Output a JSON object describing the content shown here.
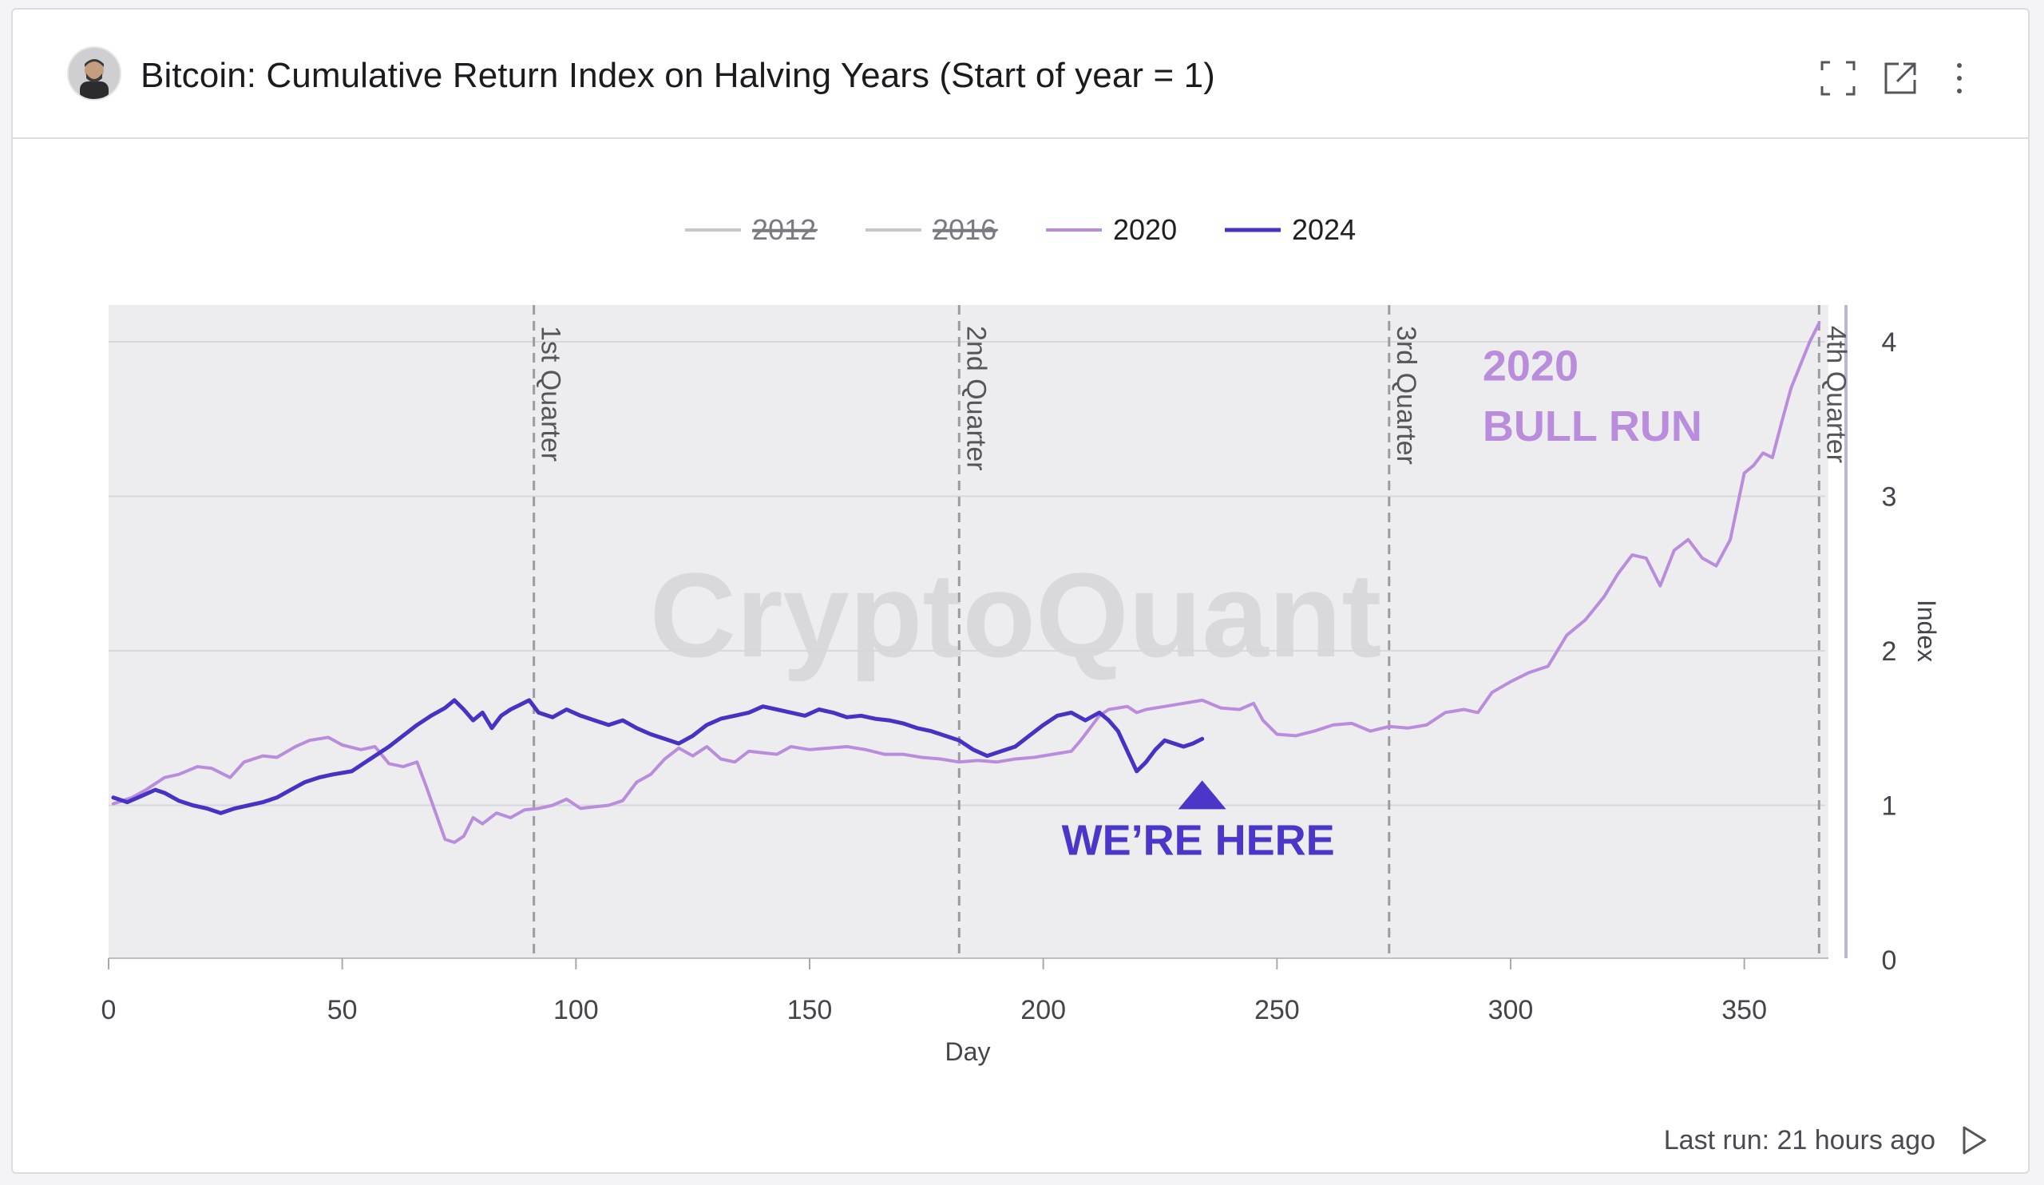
{
  "header": {
    "title": "Bitcoin: Cumulative Return Index on Halving Years (Start of year = 1)",
    "icons": [
      "avatar",
      "fullscreen-icon",
      "external-link-icon",
      "more-vertical-icon"
    ]
  },
  "footer": {
    "last_run": "Last run: 21 hours ago",
    "icon": "play-icon"
  },
  "colors": {
    "series_2020": "#b98ddb",
    "series_2024": "#4633c4",
    "hidden_series": "#c8c8cc",
    "plot_bg": "#ededf0",
    "annotation_2020": "#b98ddb",
    "annotation_here": "#4a36c8"
  },
  "chart_data": {
    "type": "line",
    "xlabel": "Day",
    "ylabel": "Index",
    "xlim": [
      0,
      368
    ],
    "ylim": [
      0,
      4.2
    ],
    "x_ticks": [
      0,
      50,
      100,
      150,
      200,
      250,
      300,
      350
    ],
    "y_ticks": [
      0,
      1,
      2,
      3,
      4
    ],
    "y_axis_side": "right",
    "grid": true,
    "watermark": "CryptoQuant",
    "legend": {
      "placement": "top-center",
      "entries": [
        {
          "name": "2012",
          "hidden": true
        },
        {
          "name": "2016",
          "hidden": true
        },
        {
          "name": "2020",
          "hidden": false
        },
        {
          "name": "2024",
          "hidden": false
        }
      ]
    },
    "quarter_markers": [
      {
        "x": 91,
        "label": "1st Quarter"
      },
      {
        "x": 182,
        "label": "2nd Quarter"
      },
      {
        "x": 274,
        "label": "3rd Quarter"
      },
      {
        "x": 366,
        "label": "4th Quarter"
      }
    ],
    "annotations": [
      {
        "text": "2020",
        "x": 294,
        "y": 3.75
      },
      {
        "text": "BULL RUN",
        "x": 294,
        "y": 3.36
      },
      {
        "text": "WE’RE HERE",
        "x": 234,
        "y": 0.68,
        "arrow_y": 1.13
      }
    ],
    "series": [
      {
        "name": "2020",
        "x": [
          1,
          5,
          8,
          12,
          15,
          19,
          22,
          26,
          29,
          33,
          36,
          40,
          43,
          47,
          50,
          54,
          57,
          60,
          63,
          66,
          68,
          70,
          72,
          74,
          76,
          78,
          80,
          83,
          86,
          89,
          92,
          95,
          98,
          101,
          104,
          107,
          110,
          113,
          116,
          119,
          122,
          125,
          128,
          131,
          134,
          137,
          140,
          143,
          146,
          150,
          154,
          158,
          162,
          166,
          170,
          174,
          178,
          182,
          186,
          190,
          194,
          198,
          202,
          206,
          208,
          210,
          212,
          214,
          216,
          218,
          220,
          222,
          226,
          230,
          234,
          238,
          242,
          245,
          247,
          250,
          254,
          258,
          262,
          266,
          270,
          274,
          278,
          282,
          286,
          290,
          293,
          296,
          300,
          304,
          308,
          312,
          316,
          320,
          323,
          326,
          329,
          332,
          335,
          338,
          341,
          344,
          347,
          350,
          352,
          354,
          356,
          358,
          360,
          362,
          364,
          366
        ],
        "y": [
          1.01,
          1.05,
          1.1,
          1.18,
          1.2,
          1.25,
          1.24,
          1.18,
          1.28,
          1.32,
          1.31,
          1.38,
          1.42,
          1.44,
          1.39,
          1.36,
          1.38,
          1.27,
          1.25,
          1.28,
          1.12,
          0.95,
          0.78,
          0.76,
          0.8,
          0.92,
          0.88,
          0.95,
          0.92,
          0.97,
          0.98,
          1.0,
          1.04,
          0.98,
          0.99,
          1.0,
          1.03,
          1.15,
          1.2,
          1.3,
          1.37,
          1.32,
          1.38,
          1.3,
          1.28,
          1.35,
          1.34,
          1.33,
          1.38,
          1.36,
          1.37,
          1.38,
          1.36,
          1.33,
          1.33,
          1.31,
          1.3,
          1.28,
          1.29,
          1.28,
          1.3,
          1.31,
          1.33,
          1.35,
          1.42,
          1.5,
          1.58,
          1.62,
          1.63,
          1.64,
          1.6,
          1.62,
          1.64,
          1.66,
          1.68,
          1.63,
          1.62,
          1.66,
          1.55,
          1.46,
          1.45,
          1.48,
          1.52,
          1.53,
          1.48,
          1.51,
          1.5,
          1.52,
          1.6,
          1.62,
          1.6,
          1.73,
          1.8,
          1.86,
          1.9,
          2.1,
          2.2,
          2.35,
          2.5,
          2.62,
          2.6,
          2.42,
          2.65,
          2.72,
          2.6,
          2.55,
          2.72,
          3.15,
          3.2,
          3.28,
          3.25,
          3.48,
          3.7,
          3.85,
          4.0,
          4.12
        ]
      },
      {
        "name": "2024",
        "x": [
          1,
          4,
          7,
          10,
          12,
          15,
          18,
          21,
          24,
          27,
          30,
          33,
          36,
          39,
          42,
          45,
          48,
          52,
          55,
          57,
          60,
          63,
          66,
          69,
          72,
          74,
          76,
          78,
          80,
          82,
          84,
          86,
          88,
          90,
          92,
          95,
          98,
          101,
          104,
          107,
          110,
          113,
          116,
          119,
          122,
          125,
          128,
          131,
          134,
          137,
          140,
          143,
          146,
          149,
          152,
          155,
          158,
          161,
          164,
          167,
          170,
          173,
          176,
          179,
          182,
          185,
          188,
          191,
          194,
          197,
          200,
          203,
          206,
          209,
          212,
          214,
          216,
          218,
          220,
          222,
          224,
          226,
          228,
          230,
          232,
          234
        ],
        "y": [
          1.05,
          1.02,
          1.06,
          1.1,
          1.08,
          1.03,
          1.0,
          0.98,
          0.95,
          0.98,
          1.0,
          1.02,
          1.05,
          1.1,
          1.15,
          1.18,
          1.2,
          1.22,
          1.28,
          1.32,
          1.38,
          1.45,
          1.52,
          1.58,
          1.63,
          1.68,
          1.62,
          1.55,
          1.6,
          1.5,
          1.58,
          1.62,
          1.65,
          1.68,
          1.6,
          1.57,
          1.62,
          1.58,
          1.55,
          1.52,
          1.55,
          1.5,
          1.46,
          1.43,
          1.4,
          1.45,
          1.52,
          1.56,
          1.58,
          1.6,
          1.64,
          1.62,
          1.6,
          1.58,
          1.62,
          1.6,
          1.57,
          1.58,
          1.56,
          1.55,
          1.53,
          1.5,
          1.48,
          1.45,
          1.42,
          1.36,
          1.32,
          1.35,
          1.38,
          1.45,
          1.52,
          1.58,
          1.6,
          1.55,
          1.6,
          1.55,
          1.48,
          1.35,
          1.22,
          1.28,
          1.36,
          1.42,
          1.4,
          1.38,
          1.4,
          1.43
        ]
      }
    ]
  }
}
